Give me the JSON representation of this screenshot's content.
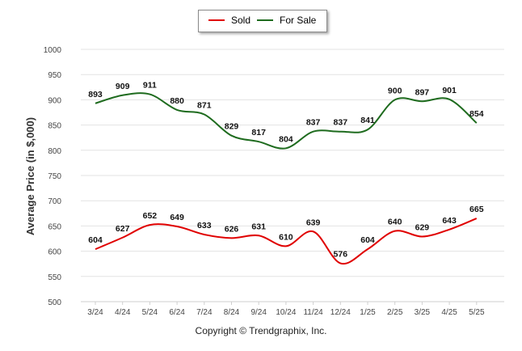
{
  "chart_data": {
    "type": "line",
    "title": "",
    "xlabel": "",
    "ylabel": "Average Price (in $,000)",
    "ylim": [
      500,
      1000
    ],
    "yticks": [
      500,
      550,
      600,
      650,
      700,
      750,
      800,
      850,
      900,
      950,
      1000
    ],
    "grid": true,
    "legend": "top-center",
    "categories": [
      "3/24",
      "4/24",
      "5/24",
      "6/24",
      "7/24",
      "8/24",
      "9/24",
      "10/24",
      "11/24",
      "12/24",
      "1/25",
      "2/25",
      "3/25",
      "4/25",
      "5/25"
    ],
    "series": [
      {
        "name": "Sold",
        "color": "#e00000",
        "values": [
          604,
          627,
          652,
          649,
          633,
          626,
          631,
          610,
          639,
          576,
          604,
          640,
          629,
          643,
          665
        ]
      },
      {
        "name": "For Sale",
        "color": "#1e6b1e",
        "values": [
          893,
          909,
          911,
          880,
          871,
          829,
          817,
          804,
          837,
          837,
          841,
          900,
          897,
          901,
          854
        ]
      }
    ]
  },
  "footer": {
    "copyright": "Copyright © Trendgraphix, Inc."
  }
}
